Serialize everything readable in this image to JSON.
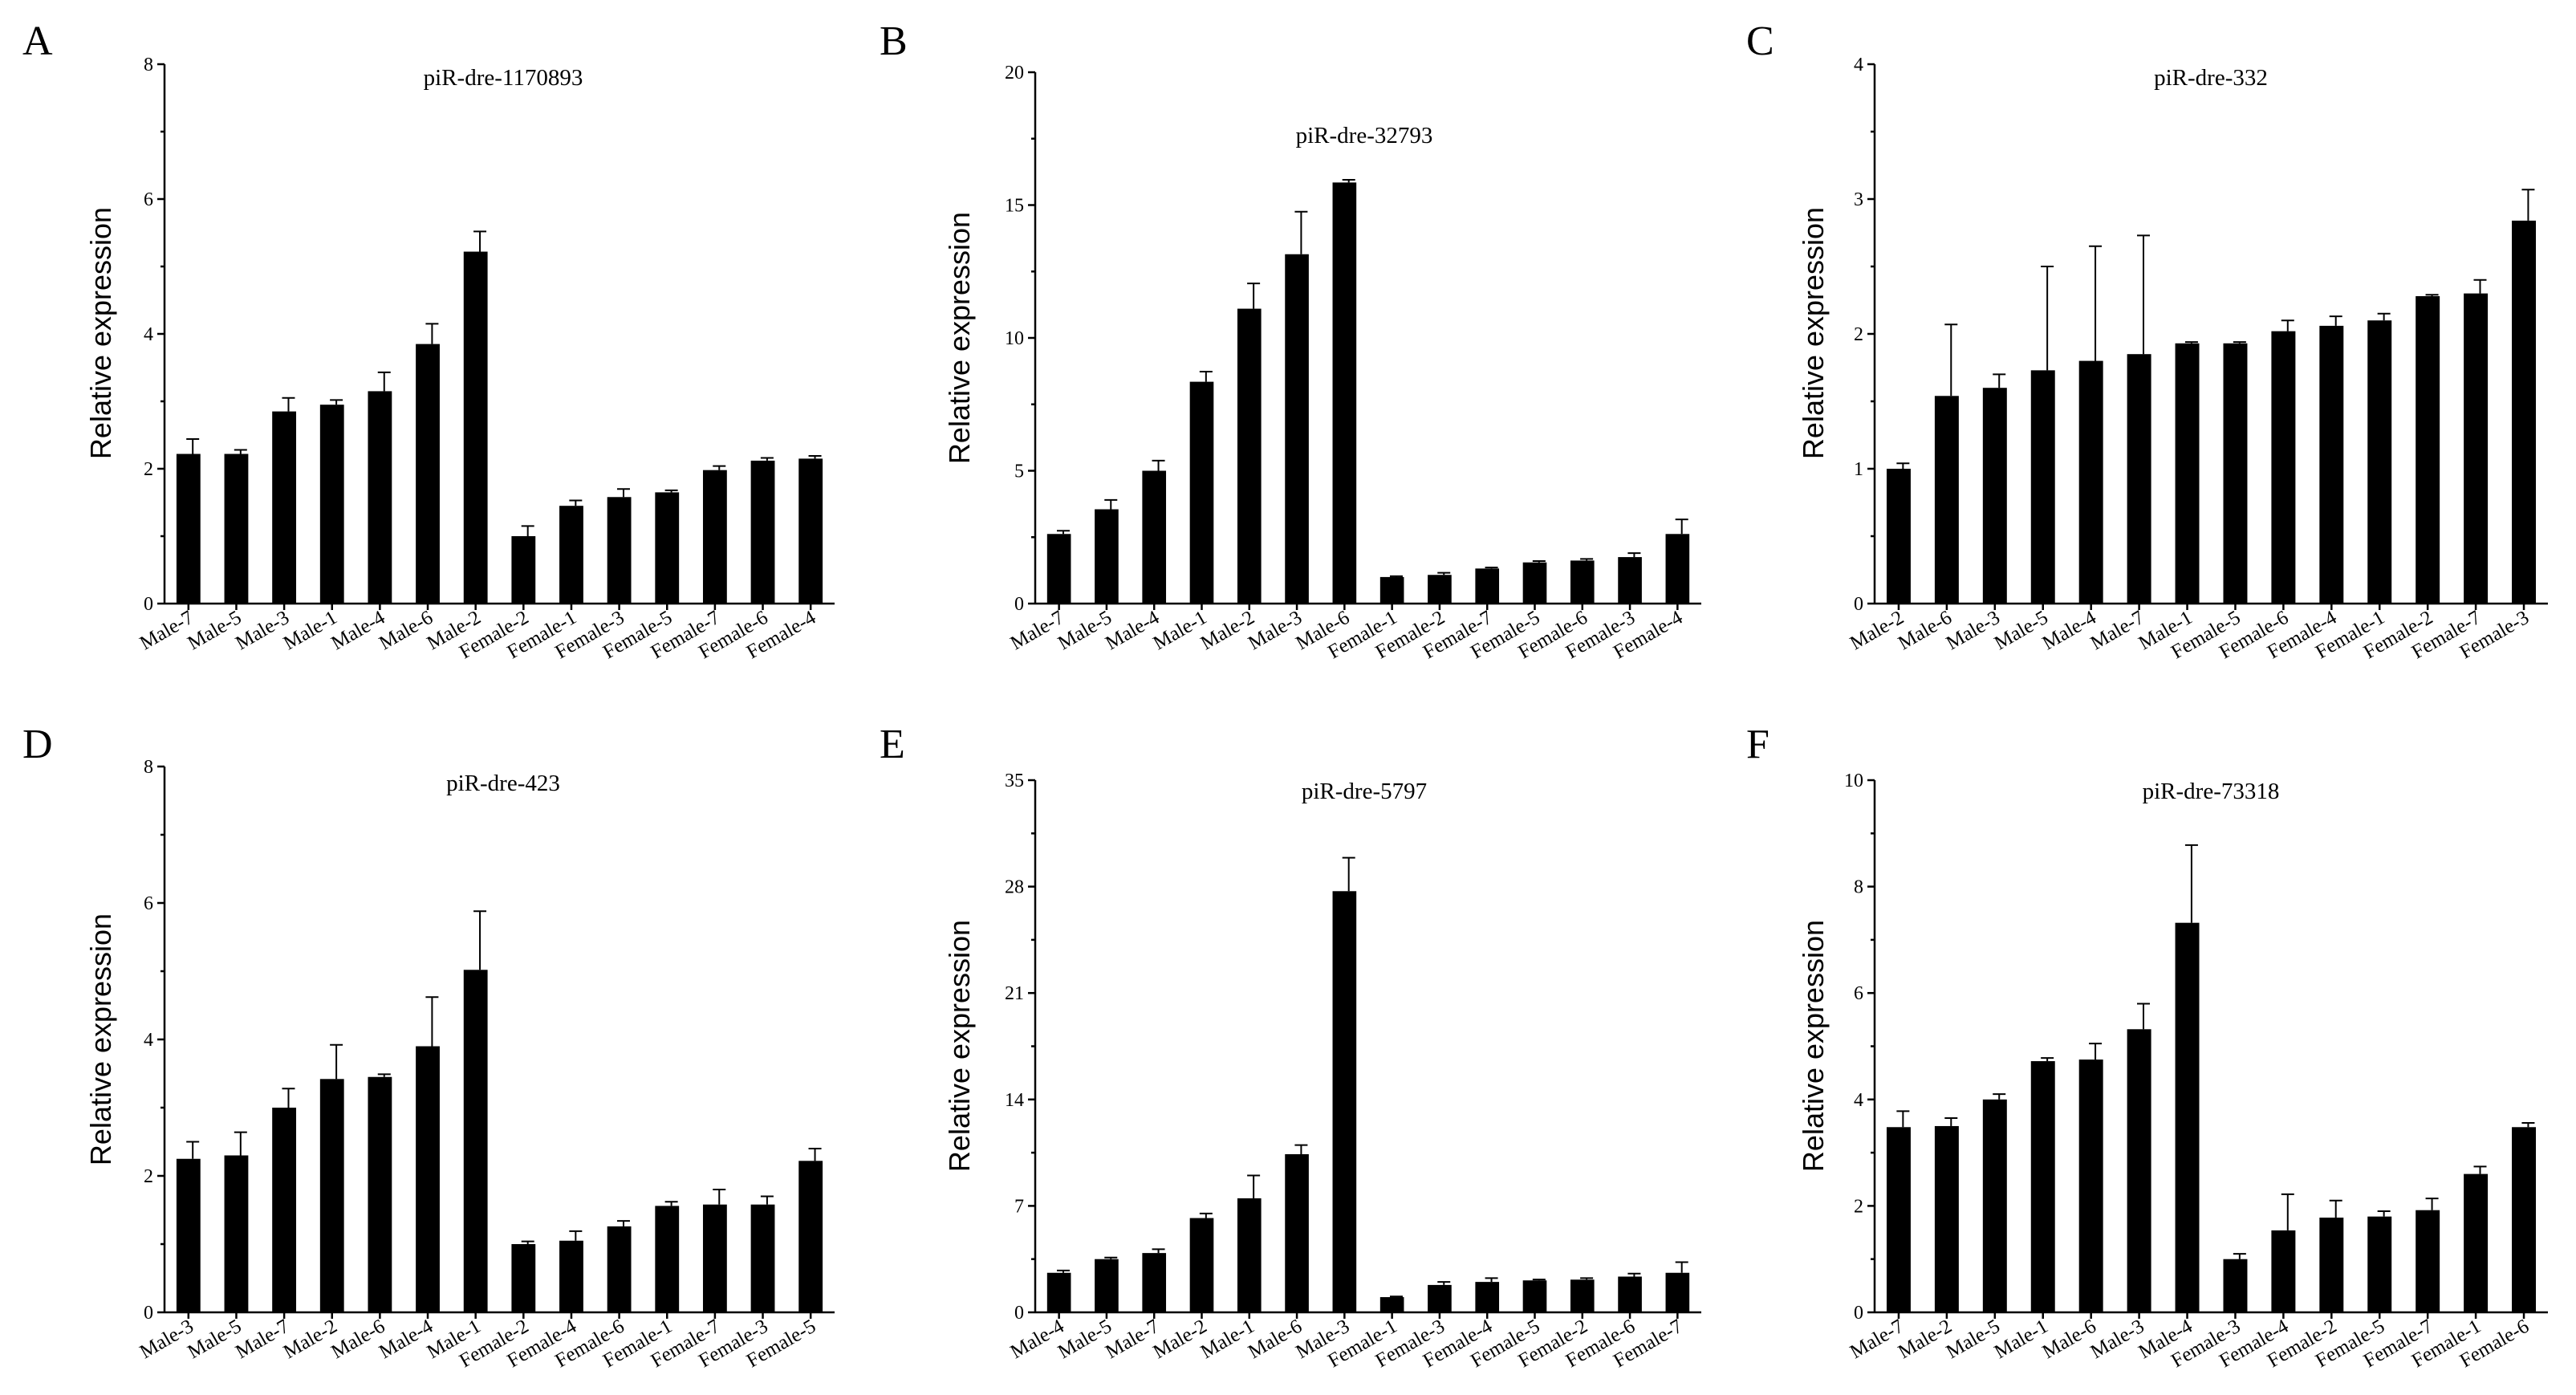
{
  "chart_data": [
    {
      "type": "bar",
      "panel_label": "A",
      "title": "piR-dre-1170893",
      "xlabel": "",
      "ylabel": "Relative expression",
      "ylim": [
        0,
        8
      ],
      "yticks": [
        "0",
        "2",
        "4",
        "6",
        "8"
      ],
      "categories": [
        "Male-7",
        "Male-5",
        "Male-3",
        "Male-1",
        "Male-4",
        "Male-6",
        "Male-2",
        "Female-2",
        "Female-1",
        "Female-3",
        "Female-5",
        "Female-7",
        "Female-6",
        "Female-4"
      ],
      "values": [
        2.22,
        2.22,
        2.85,
        2.95,
        3.15,
        3.85,
        5.22,
        1.0,
        1.45,
        1.58,
        1.65,
        1.98,
        2.12,
        2.15
      ],
      "errors": [
        0.22,
        0.06,
        0.2,
        0.07,
        0.28,
        0.3,
        0.3,
        0.15,
        0.08,
        0.12,
        0.03,
        0.06,
        0.04,
        0.04
      ]
    },
    {
      "type": "bar",
      "panel_label": "B",
      "title": "piR-dre-32793",
      "xlabel": "",
      "ylabel": "Relative expression",
      "ylim": [
        0,
        20
      ],
      "yticks": [
        "0",
        "5",
        "10",
        "15",
        "20"
      ],
      "categories": [
        "Male-7",
        "Male-5",
        "Male-4",
        "Male-1",
        "Male-2",
        "Male-3",
        "Male-6",
        "Female-1",
        "Female-2",
        "Female-7",
        "Female-5",
        "Female-6",
        "Female-3",
        "Female-4"
      ],
      "values": [
        2.62,
        3.55,
        5.0,
        8.35,
        11.1,
        13.15,
        15.85,
        1.0,
        1.08,
        1.32,
        1.55,
        1.62,
        1.75,
        2.62
      ],
      "errors": [
        0.12,
        0.35,
        0.38,
        0.38,
        0.95,
        1.6,
        0.1,
        0.03,
        0.08,
        0.04,
        0.05,
        0.06,
        0.15,
        0.55
      ]
    },
    {
      "type": "bar",
      "panel_label": "C",
      "title": "piR-dre-332",
      "xlabel": "",
      "ylabel": "Relative expression",
      "ylim": [
        0,
        4
      ],
      "yticks": [
        "0",
        "1",
        "2",
        "3",
        "4"
      ],
      "categories": [
        "Male-2",
        "Male-6",
        "Male-3",
        "Male-5",
        "Male-4",
        "Male-7",
        "Male-1",
        "Female-5",
        "Female-6",
        "Female-4",
        "Female-1",
        "Female-2",
        "Female-7",
        "Female-3"
      ],
      "values": [
        1.0,
        1.54,
        1.6,
        1.73,
        1.8,
        1.85,
        1.93,
        1.93,
        2.02,
        2.06,
        2.1,
        2.28,
        2.3,
        2.84
      ],
      "errors": [
        0.04,
        0.53,
        0.1,
        0.77,
        0.85,
        0.88,
        0.01,
        0.01,
        0.08,
        0.07,
        0.05,
        0.01,
        0.1,
        0.23
      ]
    },
    {
      "type": "bar",
      "panel_label": "D",
      "title": "piR-dre-423",
      "xlabel": "",
      "ylabel": "Relative expression",
      "ylim": [
        0,
        8
      ],
      "yticks": [
        "0",
        "2",
        "4",
        "6",
        "8"
      ],
      "categories": [
        "Male-3",
        "Male-5",
        "Male-7",
        "Male-2",
        "Male-6",
        "Male-4",
        "Male-1",
        "Female-2",
        "Female-4",
        "Female-6",
        "Female-1",
        "Female-7",
        "Female-3",
        "Female-5"
      ],
      "values": [
        2.25,
        2.3,
        3.0,
        3.42,
        3.45,
        3.9,
        5.02,
        1.0,
        1.05,
        1.26,
        1.56,
        1.58,
        1.58,
        2.22
      ],
      "errors": [
        0.25,
        0.34,
        0.28,
        0.5,
        0.04,
        0.72,
        0.86,
        0.04,
        0.14,
        0.08,
        0.06,
        0.22,
        0.12,
        0.18
      ]
    },
    {
      "type": "bar",
      "panel_label": "E",
      "title": "piR-dre-5797",
      "xlabel": "",
      "ylabel": "Relative expression",
      "ylim": [
        0,
        35
      ],
      "yticks": [
        "0",
        "7",
        "14",
        "21",
        "28",
        "35"
      ],
      "categories": [
        "Male-4",
        "Male-5",
        "Male-7",
        "Male-2",
        "Male-1",
        "Male-6",
        "Male-3",
        "Female-1",
        "Female-3",
        "Female-4",
        "Female-5",
        "Female-2",
        "Female-6",
        "Female-7"
      ],
      "values": [
        2.6,
        3.5,
        3.9,
        6.2,
        7.5,
        10.4,
        27.7,
        1.0,
        1.8,
        2.0,
        2.1,
        2.15,
        2.35,
        2.6
      ],
      "errors": [
        0.15,
        0.1,
        0.25,
        0.3,
        1.5,
        0.6,
        2.2,
        0.04,
        0.2,
        0.25,
        0.06,
        0.1,
        0.2,
        0.7
      ]
    },
    {
      "type": "bar",
      "panel_label": "F",
      "title": "piR-dre-73318",
      "xlabel": "",
      "ylabel": "Relative expression",
      "ylim": [
        0,
        10
      ],
      "yticks": [
        "0",
        "2",
        "4",
        "6",
        "8",
        "10"
      ],
      "categories": [
        "Male-7",
        "Male-2",
        "Male-5",
        "Male-1",
        "Male-6",
        "Male-3",
        "Male-4",
        "Female-3",
        "Female-4",
        "Female-2",
        "Female-5",
        "Female-7",
        "Female-1",
        "Female-6"
      ],
      "values": [
        3.48,
        3.5,
        4.0,
        4.72,
        4.75,
        5.32,
        7.32,
        1.0,
        1.54,
        1.78,
        1.8,
        1.92,
        2.6,
        3.48
      ],
      "errors": [
        0.3,
        0.15,
        0.1,
        0.06,
        0.3,
        0.48,
        1.46,
        0.1,
        0.68,
        0.32,
        0.1,
        0.22,
        0.14,
        0.08
      ]
    }
  ]
}
